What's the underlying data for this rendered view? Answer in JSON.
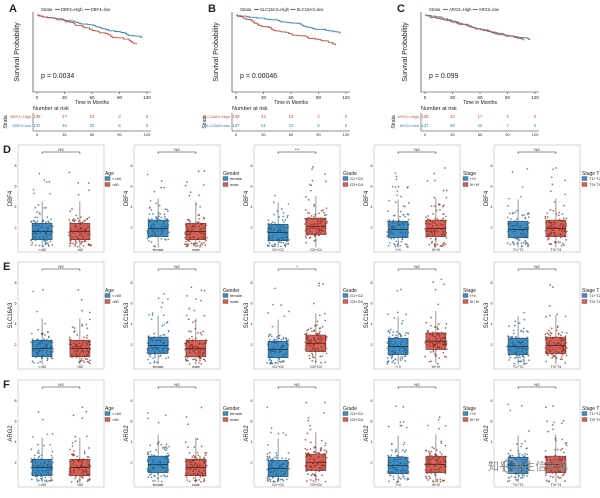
{
  "colors": {
    "blue": "#2f7fb7",
    "red": "#c8503c",
    "box_blue": "#3d8dc2",
    "box_red": "#d26055",
    "point_blue": "#2a5e8c",
    "point_red": "#8e2d24",
    "frame": "#222222",
    "text": "#222222"
  },
  "km": {
    "x_ticks": [
      "0",
      "30",
      "60",
      "90",
      "120"
    ],
    "x_label": "Time in Months",
    "y_label": "Survival Probability",
    "risk_title": "Number at risk",
    "strata_axis": "Strata",
    "panels": [
      {
        "letter": "A",
        "legend_title": "Strata",
        "legend_high": "DBF4=High",
        "legend_low": "DBF4=low",
        "pvalue": "p = 0.0034",
        "risk_rows": [
          {
            "label": "DBF4=High",
            "values": [
              "138",
              "47",
              "15",
              "3",
              "0"
            ]
          },
          {
            "label": "DBF4=low",
            "values": [
              "137",
              "46",
              "20",
              "6",
              "0"
            ]
          }
        ]
      },
      {
        "letter": "B",
        "legend_title": "Strata",
        "legend_high": "SLC16A3=High",
        "legend_low": "SLC16A3=low",
        "pvalue": "p = 0.00046",
        "risk_rows": [
          {
            "label": "SLC16A3=High",
            "values": [
              "138",
              "43",
              "15",
              "4",
              "0"
            ]
          },
          {
            "label": "SLC16A3=low",
            "values": [
              "137",
              "51",
              "22",
              "5",
              "0"
            ]
          }
        ]
      },
      {
        "letter": "C",
        "legend_title": "Strata",
        "legend_high": "ARG2=High",
        "legend_low": "ARG2=low",
        "pvalue": "p = 0.099",
        "risk_rows": [
          {
            "label": "ARG2=High",
            "values": [
              "138",
              "43",
              "17",
              "2",
              "0"
            ]
          },
          {
            "label": "ARG2=low",
            "values": [
              "137",
              "50",
              "20",
              "7",
              "0"
            ]
          }
        ]
      }
    ]
  },
  "box": {
    "y_ticks": [
      "2",
      "4",
      "6",
      "8"
    ],
    "columns": [
      {
        "legend_title": "Age",
        "legend": [
          "<=60",
          ">60"
        ],
        "groups": [
          "<=60",
          ">60"
        ]
      },
      {
        "legend_title": "Gender",
        "legend": [
          "female",
          "male"
        ],
        "groups": [
          "female",
          "male"
        ]
      },
      {
        "legend_title": "Grade",
        "legend": [
          "G1+G2",
          "G3+G4"
        ],
        "groups": [
          "G1+G2",
          "G3+G4"
        ]
      },
      {
        "legend_title": "Stage",
        "legend": [
          "I+II",
          "III+IV"
        ],
        "groups": [
          "I+II",
          "III+IV"
        ]
      },
      {
        "legend_title": "Stage T",
        "legend": [
          "T1+T2",
          "T3+T4"
        ],
        "groups": [
          "T1+T2",
          "T3+T4"
        ]
      }
    ],
    "rows": [
      {
        "letter": "D",
        "gene": "DBF4",
        "sig": [
          "NS",
          "NS",
          "***",
          "NS",
          "NS"
        ]
      },
      {
        "letter": "E",
        "gene": "SLC16A3",
        "sig": [
          "NS",
          "NS",
          "*",
          "NS",
          "NS"
        ]
      },
      {
        "letter": "F",
        "gene": "ARG2",
        "sig": [
          "NS",
          "NS",
          "NS",
          "NS",
          "NS"
        ]
      }
    ]
  },
  "watermark": "知乎 @生信风暴"
}
